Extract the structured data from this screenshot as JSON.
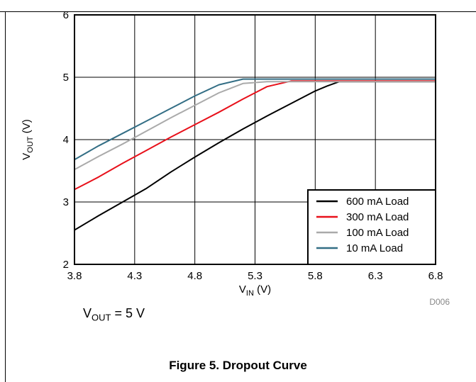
{
  "chart_data": {
    "type": "line",
    "xlabel_main": "V",
    "xlabel_sub": "IN",
    "xlabel_unit": " (V)",
    "ylabel_main": "V",
    "ylabel_sub": "OUT",
    "ylabel_unit": " (V)",
    "xlim": [
      3.8,
      6.8
    ],
    "ylim": [
      2,
      6
    ],
    "x_ticks": [
      3.8,
      4.3,
      4.8,
      5.3,
      5.8,
      6.3,
      6.8
    ],
    "x_tick_labels": [
      "3.8",
      "4.3",
      "4.8",
      "5.3",
      "5.8",
      "6.3",
      "6.8"
    ],
    "y_ticks": [
      2,
      3,
      4,
      5,
      6
    ],
    "y_tick_labels": [
      "2",
      "3",
      "4",
      "5",
      "6"
    ],
    "grid": true,
    "legend_position": "bottom-right",
    "series": [
      {
        "name": "600 mA Load",
        "color": "#000000",
        "x": [
          3.8,
          4.0,
          4.2,
          4.4,
          4.6,
          4.8,
          5.0,
          5.2,
          5.4,
          5.6,
          5.8,
          5.9,
          6.0,
          6.8
        ],
        "y": [
          2.55,
          2.78,
          3.0,
          3.22,
          3.48,
          3.72,
          3.95,
          4.17,
          4.38,
          4.58,
          4.78,
          4.86,
          4.93,
          4.93
        ]
      },
      {
        "name": "300 mA Load",
        "color": "#e8101a",
        "x": [
          3.8,
          4.0,
          4.2,
          4.4,
          4.6,
          4.8,
          5.0,
          5.2,
          5.4,
          5.6,
          6.8
        ],
        "y": [
          3.2,
          3.4,
          3.62,
          3.83,
          4.04,
          4.24,
          4.44,
          4.65,
          4.85,
          4.94,
          4.94
        ]
      },
      {
        "name": "100 mA Load",
        "color": "#aaaaaa",
        "x": [
          3.8,
          4.0,
          4.2,
          4.4,
          4.6,
          4.8,
          5.0,
          5.2,
          5.4,
          6.8
        ],
        "y": [
          3.52,
          3.73,
          3.93,
          4.14,
          4.35,
          4.55,
          4.75,
          4.9,
          4.93,
          4.93
        ]
      },
      {
        "name": "10 mA Load",
        "color": "#336e85",
        "x": [
          3.8,
          4.0,
          4.2,
          4.4,
          4.6,
          4.8,
          5.0,
          5.2,
          6.8
        ],
        "y": [
          3.68,
          3.9,
          4.1,
          4.3,
          4.5,
          4.7,
          4.88,
          4.97,
          4.97
        ]
      }
    ],
    "code_label": "D006"
  },
  "condition": {
    "main": "V",
    "sub": "OUT",
    "rest": " = 5 V"
  },
  "caption": "Figure 5. Dropout Curve"
}
